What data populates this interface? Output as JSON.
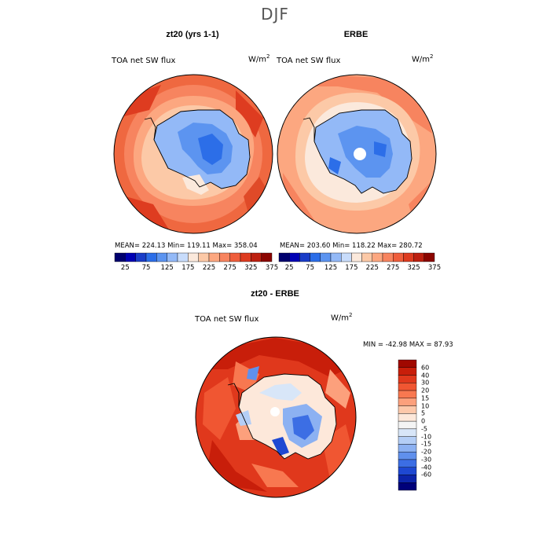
{
  "page": {
    "season": "DJF"
  },
  "panels": [
    {
      "title": "zt20 (yrs 1-1)",
      "variable": "TOA net SW flux",
      "units_base": "W/m",
      "units_exp": "2",
      "stats": "MEAN= 224.13   Min= 119.11   Max= 358.04",
      "colorbar_ticks": [
        "25",
        "75",
        "125",
        "175",
        "225",
        "275",
        "325",
        "375"
      ],
      "colorbar_colors": [
        "#00006e",
        "#0000b4",
        "#1a3dc8",
        "#2c6ee8",
        "#5c94f0",
        "#93b9f7",
        "#c8dcfb",
        "#fbe9dc",
        "#fcc9a7",
        "#fca780",
        "#f7845f",
        "#ef5e3c",
        "#de3c20",
        "#bd2010",
        "#8b0500"
      ]
    },
    {
      "title": "ERBE",
      "variable": "TOA net SW flux",
      "units_base": "W/m",
      "units_exp": "2",
      "stats": "MEAN= 203.60   Min= 118.22   Max= 280.72",
      "colorbar_ticks": [
        "25",
        "75",
        "125",
        "175",
        "225",
        "275",
        "325",
        "375"
      ],
      "colorbar_colors": [
        "#00006e",
        "#0000b4",
        "#1a3dc8",
        "#2c6ee8",
        "#5c94f0",
        "#93b9f7",
        "#c8dcfb",
        "#fbe9dc",
        "#fcc9a7",
        "#fca780",
        "#f7845f",
        "#ef5e3c",
        "#de3c20",
        "#bd2010",
        "#8b0500"
      ]
    }
  ],
  "diff": {
    "title": "zt20 - ERBE",
    "variable": "TOA net SW flux",
    "units_base": "W/m",
    "units_exp": "2",
    "stats": "MIN =  -42.98  MAX =   87.93",
    "colorbar_ticks": [
      "60",
      "40",
      "30",
      "20",
      "15",
      "10",
      "5",
      "0",
      "-5",
      "-10",
      "-15",
      "-20",
      "-30",
      "-40",
      "-60"
    ],
    "colorbar_colors": [
      "#a00800",
      "#c81e0a",
      "#e0381c",
      "#f05632",
      "#f87850",
      "#fca07c",
      "#fdc8aa",
      "#fde8da",
      "#f4f4f4",
      "#d8e6f8",
      "#b4cef6",
      "#8cb1f2",
      "#6090ec",
      "#3c6ee4",
      "#1e48d2",
      "#0c24aa",
      "#00007a"
    ]
  }
}
